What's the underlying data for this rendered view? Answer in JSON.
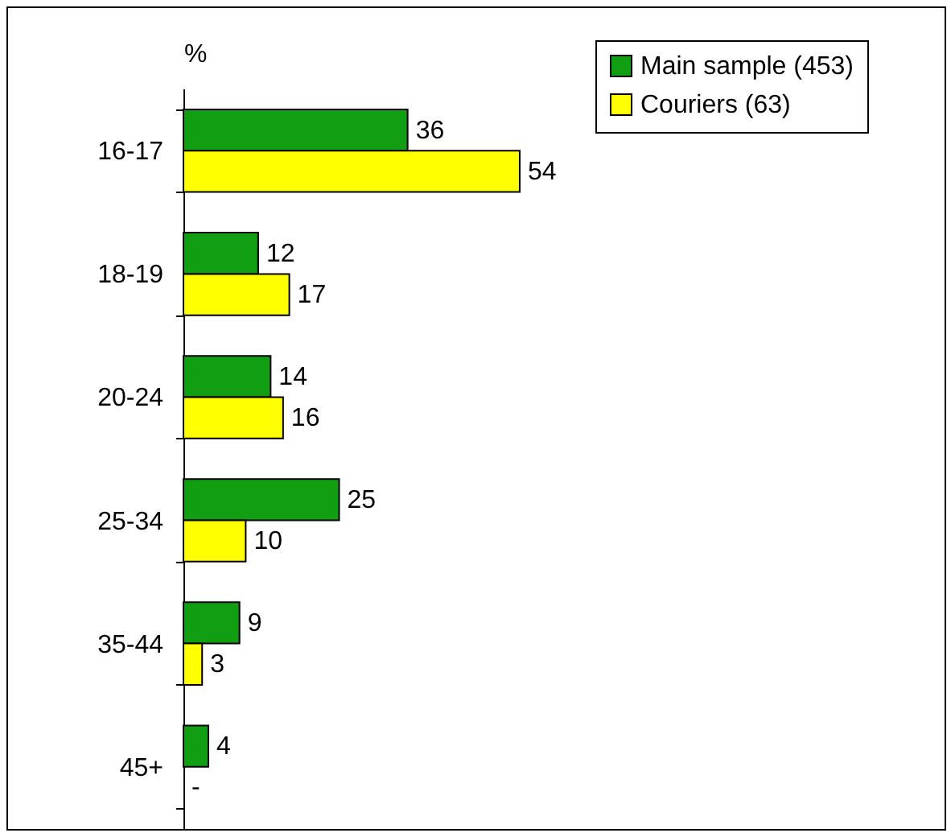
{
  "chart_data": {
    "type": "bar",
    "orientation": "horizontal",
    "xlabel": "%",
    "legend": "top right",
    "categories": [
      "16-17",
      "18-19",
      "20-24",
      "25-34",
      "35-44",
      "45+"
    ],
    "series": [
      {
        "name": "Main sample (453)",
        "color": "#129e12",
        "values": [
          36,
          12,
          14,
          25,
          9,
          4
        ],
        "value_labels": [
          "36",
          "12",
          "14",
          "25",
          "9",
          "4"
        ]
      },
      {
        "name": "Couriers (63)",
        "color": "#ffff00",
        "values": [
          54,
          17,
          16,
          10,
          3,
          null
        ],
        "value_labels": [
          "54",
          "17",
          "16",
          "10",
          "3",
          "-"
        ]
      }
    ]
  }
}
